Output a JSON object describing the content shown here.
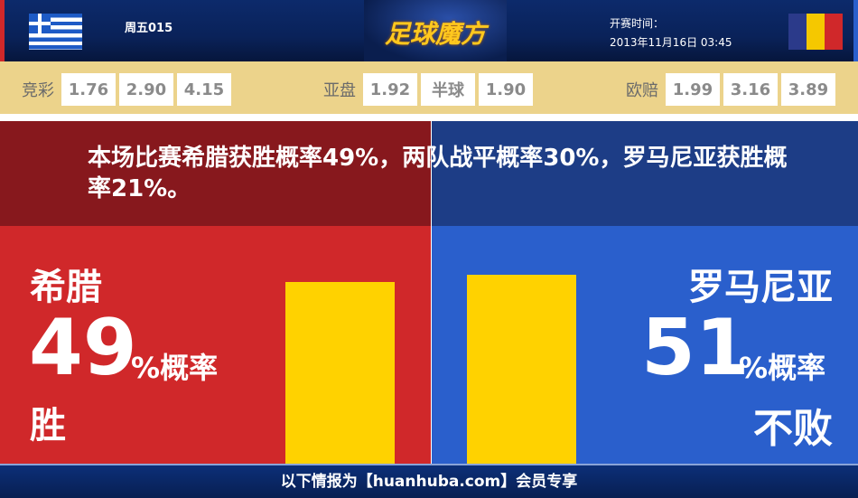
{
  "header": {
    "home_flag": "greece-flag",
    "away_flag": "romania-flag",
    "match_no": "周五015",
    "logo": "足球魔方",
    "kickoff_label": "开赛时间：",
    "kickoff_time": "2013年11月16日 03:45"
  },
  "odds": {
    "jingcai": {
      "label": "竞彩",
      "values": [
        "1.76",
        "2.90",
        "4.15"
      ]
    },
    "yapan": {
      "label": "亚盘",
      "values": [
        "1.92",
        "半球",
        "1.90"
      ]
    },
    "oupei": {
      "label": "欧赔",
      "values": [
        "1.99",
        "3.16",
        "3.89"
      ]
    }
  },
  "summary": "本场比赛希腊获胜概率49%，两队战平概率30%，罗马尼亚获胜概率21%。",
  "home": {
    "name": "希腊",
    "percent": "49",
    "unit": "%概率",
    "outcome": "胜",
    "value": 49,
    "color": "#d0282a"
  },
  "away": {
    "name": "罗马尼亚",
    "percent": "51",
    "unit": "%概率",
    "outcome": "不败",
    "value": 51,
    "color": "#2a5fcc"
  },
  "bar_color": "#ffd200",
  "footer": "以下情报为【huanhuba.com】会员专享"
}
